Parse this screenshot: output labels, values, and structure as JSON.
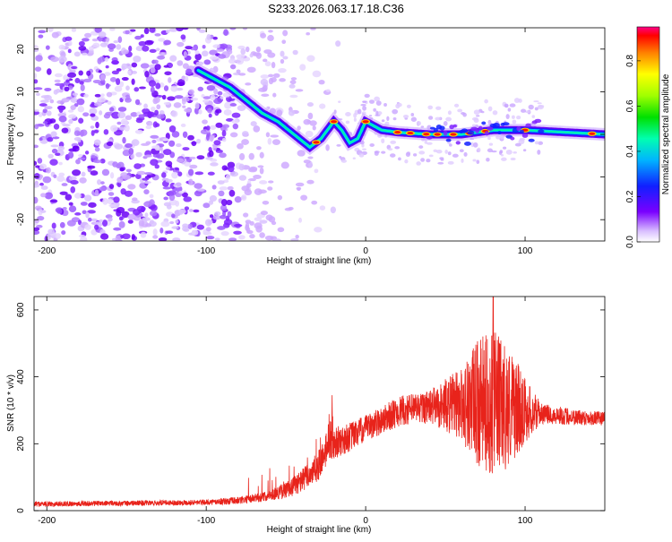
{
  "title": "S233.2026.063.17.18.C36",
  "chart_data": [
    {
      "type": "heatmap",
      "name": "spectrogram",
      "xlabel": "Height of straight line (km)",
      "ylabel": "Frequency (Hz)",
      "xlim": [
        -208,
        150
      ],
      "ylim": [
        -25,
        25
      ],
      "x_ticks": [
        -200,
        -100,
        0,
        100
      ],
      "y_ticks": [
        -20,
        -10,
        0,
        10,
        20
      ],
      "colorbar": {
        "label": "Normalized spectral amplitude",
        "range": [
          0,
          0.95
        ],
        "ticks": [
          0.0,
          0.2,
          0.4,
          0.6,
          0.8
        ]
      },
      "ridge": {
        "description_points_x": [
          -105,
          -95,
          -85,
          -75,
          -65,
          -55,
          -45,
          -35,
          -28,
          -20,
          -15,
          -10,
          -5,
          0,
          5,
          10,
          20,
          40,
          60,
          80,
          100,
          150
        ],
        "description_points_y": [
          15,
          13,
          11,
          8,
          5,
          3,
          0,
          -3,
          -1,
          3,
          1,
          -2,
          -1,
          3,
          2,
          1,
          0.5,
          0,
          0,
          1,
          1,
          0
        ]
      }
    },
    {
      "type": "line",
      "name": "snr",
      "xlabel": "Height of straight line (km)",
      "ylabel": "SNR (10 * v/v)",
      "xlim": [
        -208,
        150
      ],
      "ylim": [
        0,
        640
      ],
      "x_ticks": [
        -200,
        -100,
        0,
        100
      ],
      "y_ticks": [
        0,
        200,
        400,
        600
      ],
      "envelope": {
        "x": [
          -208,
          -150,
          -100,
          -80,
          -65,
          -50,
          -40,
          -30,
          -25,
          -20,
          -10,
          0,
          10,
          20,
          30,
          40,
          50,
          60,
          65,
          70,
          75,
          80,
          85,
          90,
          95,
          100,
          110,
          120,
          130,
          150
        ],
        "y": [
          20,
          22,
          25,
          30,
          40,
          60,
          90,
          130,
          180,
          200,
          220,
          245,
          270,
          295,
          305,
          310,
          315,
          320,
          320,
          320,
          320,
          320,
          315,
          310,
          305,
          300,
          290,
          285,
          280,
          275
        ]
      },
      "noise_amplitude": {
        "x": [
          -208,
          -100,
          -60,
          -40,
          -25,
          0,
          40,
          60,
          70,
          80,
          90,
          100,
          110,
          150
        ],
        "y": [
          8,
          8,
          15,
          35,
          50,
          40,
          50,
          110,
          190,
          220,
          180,
          100,
          30,
          20
        ]
      },
      "peak": {
        "x": 80,
        "y": 640
      }
    }
  ]
}
